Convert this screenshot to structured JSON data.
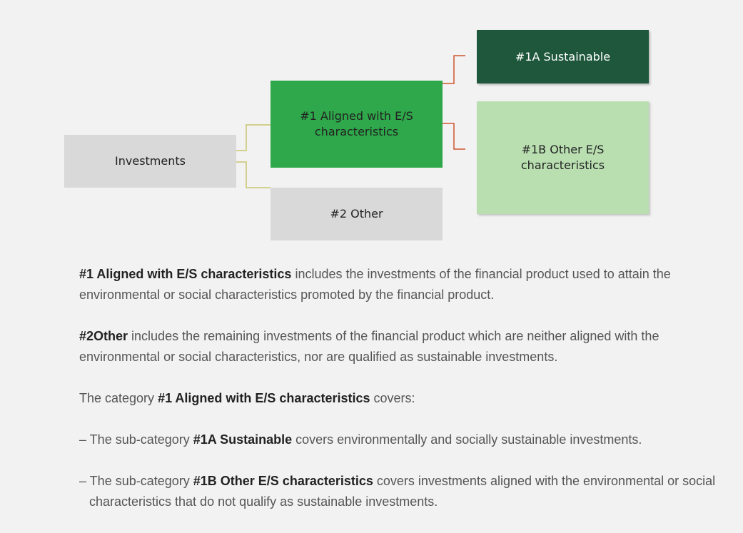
{
  "nodes": [
    {
      "label": "Investments"
    },
    {
      "label": "#1 Aligned with E/S characteristics"
    },
    {
      "label": "#2 Other"
    },
    {
      "label": "#1A Sustainable"
    },
    {
      "label": "#1B Other E/S characteristics"
    }
  ],
  "paragraphs": [
    {
      "segments": [
        {
          "text": "#1 Aligned with E/S characteristics",
          "bold": true
        },
        {
          "text": " includes the investments of the financial product used to attain the environmental or social characteristics promoted by the financial product."
        }
      ]
    },
    {
      "segments": [
        {
          "text": "#2Other",
          "bold": true
        },
        {
          "text": " includes the remaining investments of the financial product which are neither aligned with the environmental or social characteristics, nor are qualified as sustainable investments."
        }
      ]
    },
    {
      "segments": [
        {
          "text": "The category "
        },
        {
          "text": "#1 Aligned with E/S characteristics",
          "bold": true
        },
        {
          "text": " covers:"
        }
      ]
    },
    {
      "segments": [
        {
          "text": "– The sub-category "
        },
        {
          "text": "#1A Sustainable",
          "bold": true
        },
        {
          "text": " covers environmentally and socially sustainable investments."
        }
      ]
    },
    {
      "segments": [
        {
          "text": "– The sub-category "
        },
        {
          "text": "#1B Other E/S characteristics",
          "bold": true
        },
        {
          "text": " covers investments aligned with the environmental or social characteristics that do not qualify as sustainable investments."
        }
      ]
    }
  ]
}
